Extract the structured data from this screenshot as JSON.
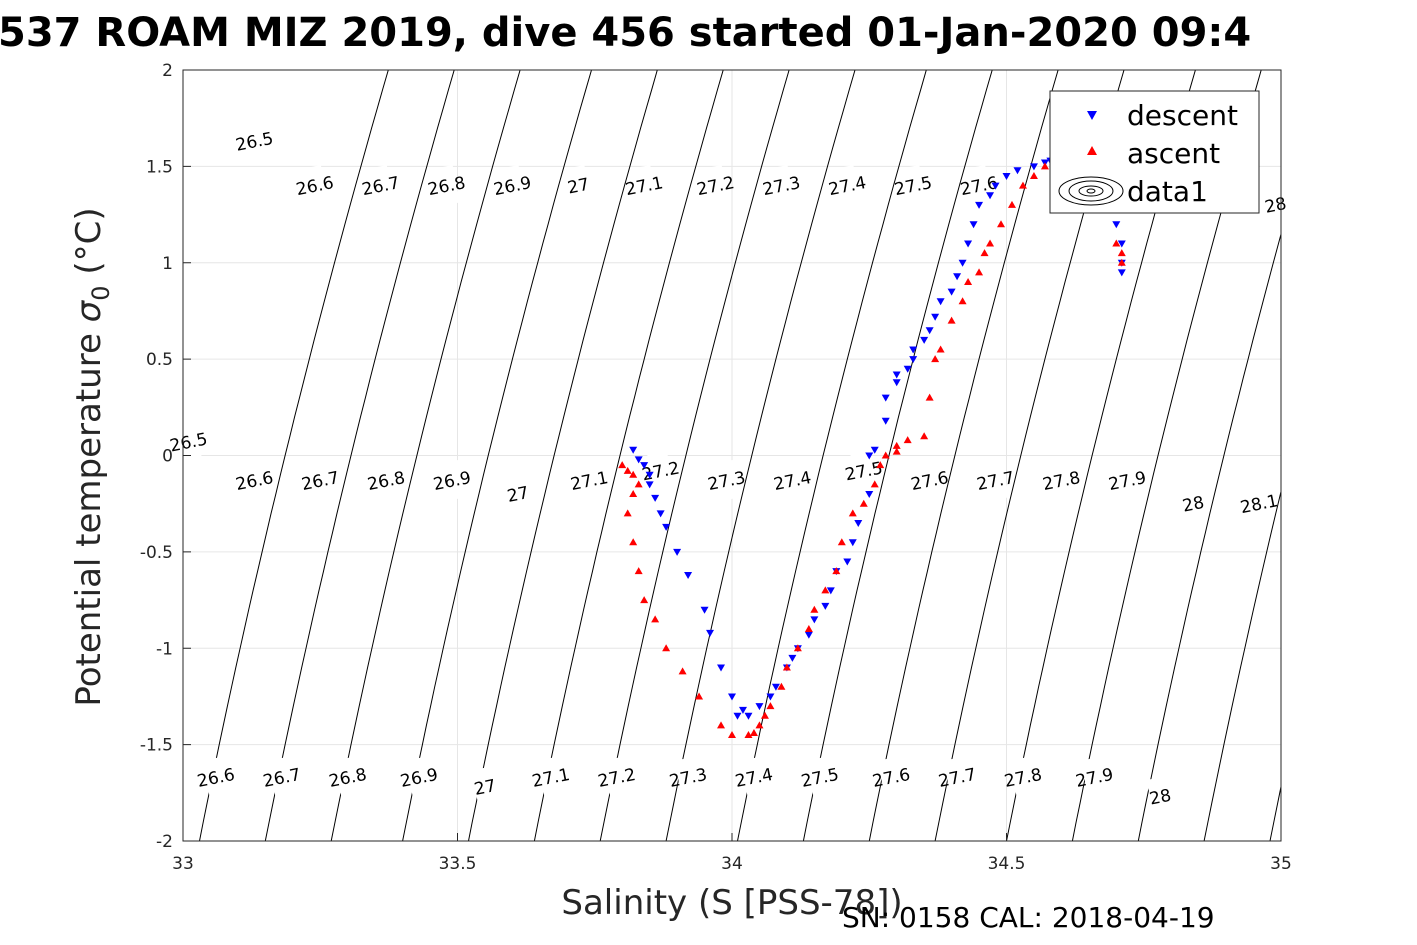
{
  "chart_data": {
    "type": "scatter",
    "title": "537 ROAM MIZ 2019, dive 456 started 01-Jan-2020 09:4",
    "xlabel": "Salinity (S [PSS-78])",
    "ylabel_main": "Potential temperature ",
    "ylabel_sigma": "σ",
    "ylabel_sub": "0",
    "ylabel_unit": " (°C)",
    "footer": "SN: 0158  CAL: 2018-04-19",
    "xlim": [
      33,
      35
    ],
    "ylim": [
      -2,
      2
    ],
    "grid": true,
    "x_ticks": [
      "33",
      "33.5",
      "34",
      "34.5",
      "35"
    ],
    "y_ticks": [
      "2",
      "1.5",
      "1",
      "0.5",
      "0",
      "-0.5",
      "-1",
      "-1.5",
      "-2"
    ],
    "legend": {
      "position": "top-right",
      "entries": [
        "descent",
        "ascent",
        "data1"
      ]
    },
    "colors": {
      "descent": "#0000ff",
      "ascent": "#ff0000",
      "contour": "#000000"
    },
    "contours": [
      {
        "S": 33.03,
        "label": "26.5"
      },
      {
        "S": 33.15,
        "label": "26.6"
      },
      {
        "S": 33.27,
        "label": "26.7"
      },
      {
        "S": 33.4,
        "label": "26.8"
      },
      {
        "S": 33.52,
        "label": "26.9"
      },
      {
        "S": 33.64,
        "label": "27"
      },
      {
        "S": 33.76,
        "label": "27.1"
      },
      {
        "S": 33.88,
        "label": "27.2"
      },
      {
        "S": 34.01,
        "label": "27.3"
      },
      {
        "S": 34.13,
        "label": "27.4"
      },
      {
        "S": 34.25,
        "label": "27.5"
      },
      {
        "S": 34.37,
        "label": "27.6"
      },
      {
        "S": 34.5,
        "label": "27.7"
      },
      {
        "S": 34.62,
        "label": "27.8"
      },
      {
        "S": 34.74,
        "label": "27.9"
      },
      {
        "S": 34.86,
        "label": "28"
      },
      {
        "S": 34.98,
        "label": "28.1"
      }
    ],
    "contour_labels_top": [
      {
        "label": "26.5",
        "S": 33.13,
        "T": 1.63
      },
      {
        "label": "26.6",
        "S": 33.24,
        "T": 1.4
      },
      {
        "label": "26.7",
        "S": 33.36,
        "T": 1.4
      },
      {
        "label": "26.8",
        "S": 33.48,
        "T": 1.4
      },
      {
        "label": "26.9",
        "S": 33.6,
        "T": 1.4
      },
      {
        "label": "27",
        "S": 33.72,
        "T": 1.4
      },
      {
        "label": "27.1",
        "S": 33.84,
        "T": 1.4
      },
      {
        "label": "27.2",
        "S": 33.97,
        "T": 1.4
      },
      {
        "label": "27.3",
        "S": 34.09,
        "T": 1.4
      },
      {
        "label": "27.4",
        "S": 34.21,
        "T": 1.4
      },
      {
        "label": "27.5",
        "S": 34.33,
        "T": 1.4
      },
      {
        "label": "27.6",
        "S": 34.45,
        "T": 1.4
      },
      {
        "label": "28",
        "S": 34.99,
        "T": 1.3
      }
    ],
    "contour_labels_mid": [
      {
        "label": "26.5",
        "S": 33.01,
        "T": 0.07
      },
      {
        "label": "26.6",
        "S": 33.13,
        "T": -0.13
      },
      {
        "label": "26.7",
        "S": 33.25,
        "T": -0.13
      },
      {
        "label": "26.8",
        "S": 33.37,
        "T": -0.13
      },
      {
        "label": "26.9",
        "S": 33.49,
        "T": -0.13
      },
      {
        "label": "27",
        "S": 33.61,
        "T": -0.2
      },
      {
        "label": "27.1",
        "S": 33.74,
        "T": -0.13
      },
      {
        "label": "27.2",
        "S": 33.87,
        "T": -0.08
      },
      {
        "label": "27.3",
        "S": 33.99,
        "T": -0.13
      },
      {
        "label": "27.4",
        "S": 34.11,
        "T": -0.13
      },
      {
        "label": "27.5",
        "S": 34.24,
        "T": -0.08
      },
      {
        "label": "27.6",
        "S": 34.36,
        "T": -0.13
      },
      {
        "label": "27.7",
        "S": 34.48,
        "T": -0.13
      },
      {
        "label": "27.8",
        "S": 34.6,
        "T": -0.13
      },
      {
        "label": "27.9",
        "S": 34.72,
        "T": -0.13
      },
      {
        "label": "28",
        "S": 34.84,
        "T": -0.25
      },
      {
        "label": "28.1",
        "S": 34.96,
        "T": -0.25
      }
    ],
    "contour_labels_bottom": [
      {
        "label": "26.6",
        "S": 33.06,
        "T": -1.67
      },
      {
        "label": "26.7",
        "S": 33.18,
        "T": -1.67
      },
      {
        "label": "26.8",
        "S": 33.3,
        "T": -1.67
      },
      {
        "label": "26.9",
        "S": 33.43,
        "T": -1.67
      },
      {
        "label": "27",
        "S": 33.55,
        "T": -1.72
      },
      {
        "label": "27.1",
        "S": 33.67,
        "T": -1.67
      },
      {
        "label": "27.2",
        "S": 33.79,
        "T": -1.67
      },
      {
        "label": "27.3",
        "S": 33.92,
        "T": -1.67
      },
      {
        "label": "27.4",
        "S": 34.04,
        "T": -1.67
      },
      {
        "label": "27.5",
        "S": 34.16,
        "T": -1.67
      },
      {
        "label": "27.6",
        "S": 34.29,
        "T": -1.67
      },
      {
        "label": "27.7",
        "S": 34.41,
        "T": -1.67
      },
      {
        "label": "27.8",
        "S": 34.53,
        "T": -1.67
      },
      {
        "label": "27.9",
        "S": 34.66,
        "T": -1.67
      },
      {
        "label": "28",
        "S": 34.78,
        "T": -1.77
      }
    ],
    "series": [
      {
        "name": "descent",
        "marker": "triangle-down",
        "S": [
          33.82,
          33.83,
          33.84,
          33.85,
          33.85,
          33.86,
          33.87,
          33.88,
          33.9,
          33.92,
          33.95,
          33.96,
          33.98,
          34.0,
          34.02,
          34.01,
          34.03,
          34.05,
          34.07,
          34.08,
          34.1,
          34.11,
          34.12,
          34.14,
          34.15,
          34.17,
          34.18,
          34.19,
          34.21,
          34.22,
          34.23,
          34.25,
          34.25,
          34.26,
          34.28,
          34.28,
          34.3,
          34.3,
          34.32,
          34.33,
          34.33,
          34.35,
          34.36,
          34.37,
          34.38,
          34.4,
          34.41,
          34.42,
          34.43,
          34.44,
          34.45,
          34.47,
          34.48,
          34.5,
          34.52,
          34.55,
          34.57,
          34.58,
          34.6,
          34.62,
          34.64,
          34.66,
          34.68,
          34.7,
          34.71,
          34.71,
          34.71
        ],
        "T": [
          0.03,
          -0.02,
          -0.05,
          -0.1,
          -0.15,
          -0.22,
          -0.3,
          -0.37,
          -0.5,
          -0.62,
          -0.8,
          -0.92,
          -1.1,
          -1.25,
          -1.32,
          -1.35,
          -1.35,
          -1.3,
          -1.25,
          -1.2,
          -1.1,
          -1.05,
          -1.0,
          -0.93,
          -0.85,
          -0.78,
          -0.7,
          -0.6,
          -0.55,
          -0.45,
          -0.35,
          -0.2,
          0.0,
          0.03,
          0.18,
          0.3,
          0.38,
          0.42,
          0.45,
          0.5,
          0.55,
          0.6,
          0.65,
          0.72,
          0.8,
          0.85,
          0.93,
          1.0,
          1.1,
          1.2,
          1.3,
          1.35,
          1.4,
          1.45,
          1.48,
          1.5,
          1.52,
          1.53,
          1.55,
          1.58,
          1.55,
          1.5,
          1.4,
          1.2,
          1.1,
          1.0,
          0.95
        ]
      },
      {
        "name": "ascent",
        "marker": "triangle-up",
        "S": [
          33.8,
          33.81,
          33.82,
          33.83,
          33.82,
          33.81,
          33.82,
          33.83,
          33.84,
          33.86,
          33.88,
          33.91,
          33.94,
          33.98,
          34.0,
          34.03,
          34.04,
          34.05,
          34.06,
          34.07,
          34.09,
          34.1,
          34.12,
          34.14,
          34.15,
          34.17,
          34.19,
          34.2,
          34.22,
          34.24,
          34.26,
          34.27,
          34.28,
          34.3,
          34.3,
          34.32,
          34.35,
          34.36,
          34.37,
          34.38,
          34.4,
          34.42,
          34.43,
          34.45,
          34.46,
          34.47,
          34.49,
          34.51,
          34.53,
          34.55,
          34.57,
          34.59,
          34.61,
          34.63,
          34.65,
          34.67,
          34.69,
          34.7,
          34.71,
          34.71
        ],
        "T": [
          -0.05,
          -0.08,
          -0.1,
          -0.15,
          -0.2,
          -0.3,
          -0.45,
          -0.6,
          -0.75,
          -0.85,
          -1.0,
          -1.12,
          -1.25,
          -1.4,
          -1.45,
          -1.45,
          -1.44,
          -1.4,
          -1.35,
          -1.3,
          -1.2,
          -1.1,
          -1.0,
          -0.9,
          -0.8,
          -0.7,
          -0.6,
          -0.45,
          -0.3,
          -0.25,
          -0.15,
          -0.05,
          0.0,
          0.02,
          0.05,
          0.08,
          0.1,
          0.3,
          0.5,
          0.55,
          0.7,
          0.8,
          0.9,
          0.95,
          1.05,
          1.1,
          1.2,
          1.3,
          1.4,
          1.45,
          1.5,
          1.55,
          1.55,
          1.5,
          1.45,
          1.4,
          1.3,
          1.1,
          1.0,
          1.05
        ]
      }
    ]
  }
}
